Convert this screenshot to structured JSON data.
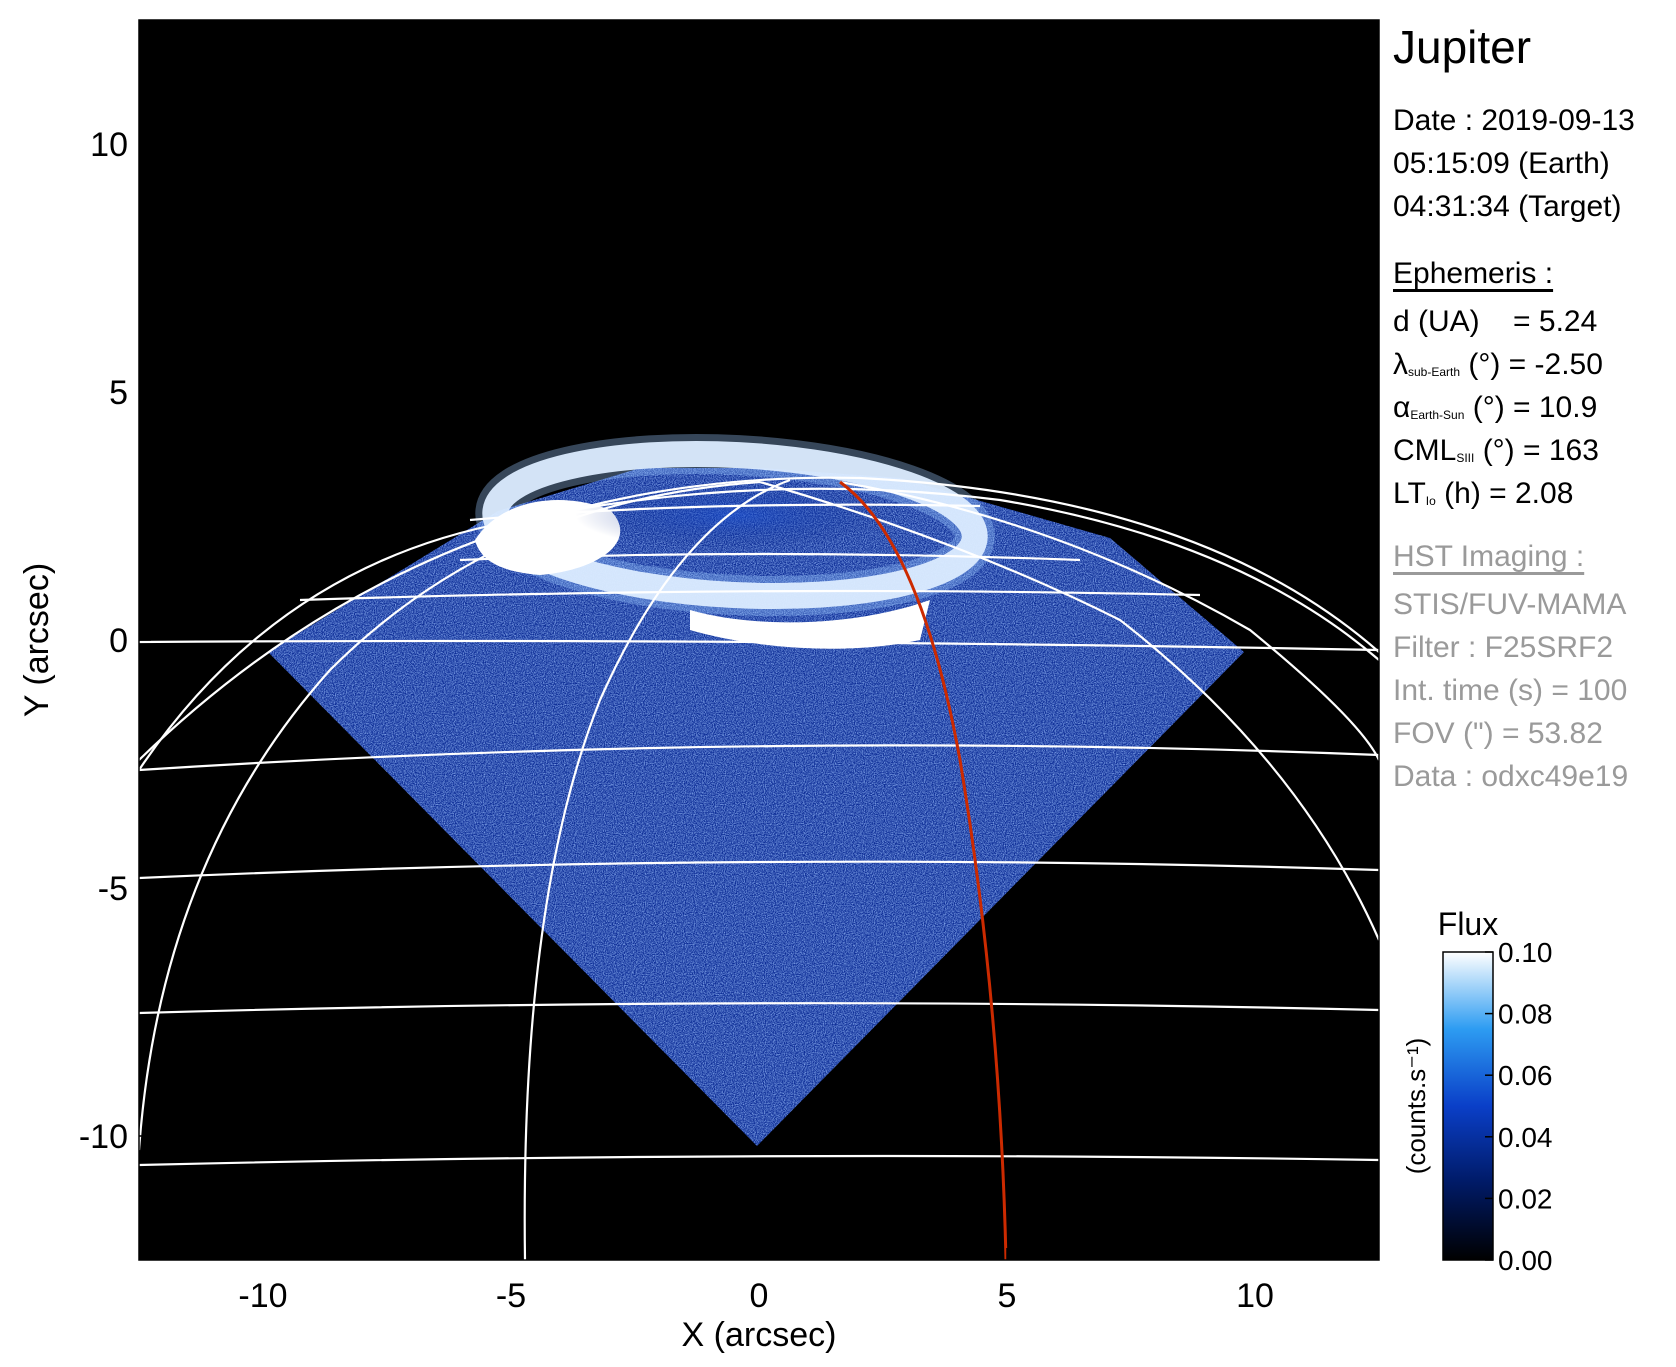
{
  "panel": {
    "title": "Jupiter",
    "date_line": "Date : 2019-09-13",
    "time_earth": "05:15:09 (Earth)",
    "time_target": "04:31:34 (Target)",
    "ephemeris_header": "Ephemeris :",
    "ephemeris": [
      {
        "sym": "d (UA)",
        "sub": "",
        "rest": "    = 5.24"
      },
      {
        "sym": "λ",
        "sub": "sub-Earth",
        "rest": " (°) = -2.50"
      },
      {
        "sym": "α",
        "sub": "Earth-Sun",
        "rest": " (°) = 10.9"
      },
      {
        "sym": "CML",
        "sub": "SIII",
        "rest": " (°) = 163"
      },
      {
        "sym": "LT",
        "sub": "Io",
        "rest": " (h) = 2.08"
      }
    ],
    "hst_header": "HST Imaging :",
    "hst": [
      "STIS/FUV-MAMA",
      "Filter : F25SRF2",
      "Int. time (s) = 100",
      "FOV (\") = 53.82",
      "Data : odxc49e19"
    ]
  },
  "colorbar": {
    "title": "Flux",
    "label": "(counts.s⁻¹)",
    "ticks": [
      "0.10",
      "0.08",
      "0.06",
      "0.04",
      "0.02",
      "0.00"
    ],
    "range": [
      0,
      0.1
    ]
  },
  "colors": {
    "background": "#000000",
    "grid": "#ffffff",
    "reference_meridian": "#cc2a00",
    "emission_low": "#0b2a8a",
    "emission_high": "#ffffff"
  },
  "chart_data": {
    "type": "heatmap",
    "xlabel": "X (arcsec)",
    "ylabel": "Y (arcsec)",
    "xlim": [
      -12.5,
      12.5
    ],
    "ylim": [
      -12.5,
      12.5
    ],
    "xticks": [
      -10,
      -5,
      0,
      5,
      10
    ],
    "yticks": [
      -10,
      -5,
      0,
      5,
      10
    ],
    "grid": true
  }
}
